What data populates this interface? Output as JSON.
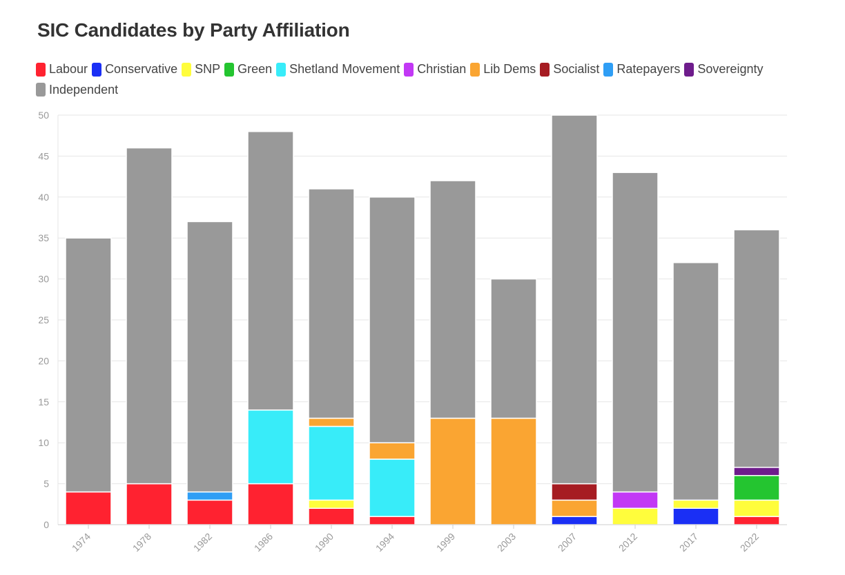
{
  "chart_data": {
    "type": "bar",
    "stacked": true,
    "title": "SIC Candidates by Party Affiliation",
    "xlabel": "",
    "ylabel": "",
    "ylim": [
      0,
      50
    ],
    "yticks": [
      0,
      5,
      10,
      15,
      20,
      25,
      30,
      35,
      40,
      45,
      50
    ],
    "grid": true,
    "legend_position": "top-left",
    "categories": [
      "1974",
      "1978",
      "1982",
      "1986",
      "1990",
      "1994",
      "1999",
      "2003",
      "2007",
      "2012",
      "2017",
      "2022"
    ],
    "series": [
      {
        "name": "Labour",
        "color": "#ff2230",
        "values": [
          4,
          5,
          3,
          5,
          2,
          1,
          0,
          0,
          0,
          0,
          0,
          1
        ]
      },
      {
        "name": "Conservative",
        "color": "#1a2ff5",
        "values": [
          0,
          0,
          0,
          0,
          0,
          0,
          0,
          0,
          1,
          0,
          2,
          0
        ]
      },
      {
        "name": "SNP",
        "color": "#fffd3c",
        "values": [
          0,
          0,
          0,
          0,
          1,
          0,
          0,
          0,
          0,
          2,
          1,
          2
        ]
      },
      {
        "name": "Green",
        "color": "#24c530",
        "values": [
          0,
          0,
          0,
          0,
          0,
          0,
          0,
          0,
          0,
          0,
          0,
          3
        ]
      },
      {
        "name": "Shetland Movement",
        "color": "#38ecf9",
        "values": [
          0,
          0,
          0,
          9,
          9,
          7,
          0,
          0,
          0,
          0,
          0,
          0
        ]
      },
      {
        "name": "Christian",
        "color": "#c238f5",
        "values": [
          0,
          0,
          0,
          0,
          0,
          0,
          0,
          0,
          0,
          2,
          0,
          0
        ]
      },
      {
        "name": "Lib Dems",
        "color": "#faa532",
        "values": [
          0,
          0,
          0,
          0,
          1,
          2,
          13,
          13,
          2,
          0,
          0,
          0
        ]
      },
      {
        "name": "Socialist",
        "color": "#a61c22",
        "values": [
          0,
          0,
          0,
          0,
          0,
          0,
          0,
          0,
          2,
          0,
          0,
          0
        ]
      },
      {
        "name": "Ratepayers",
        "color": "#2f9ef5",
        "values": [
          0,
          0,
          1,
          0,
          0,
          0,
          0,
          0,
          0,
          0,
          0,
          0
        ]
      },
      {
        "name": "Sovereignty",
        "color": "#6e1c8c",
        "values": [
          0,
          0,
          0,
          0,
          0,
          0,
          0,
          0,
          0,
          0,
          0,
          1
        ]
      },
      {
        "name": "Independent",
        "color": "#999999",
        "values": [
          31,
          41,
          33,
          34,
          28,
          30,
          29,
          17,
          45,
          39,
          29,
          29
        ]
      }
    ]
  }
}
